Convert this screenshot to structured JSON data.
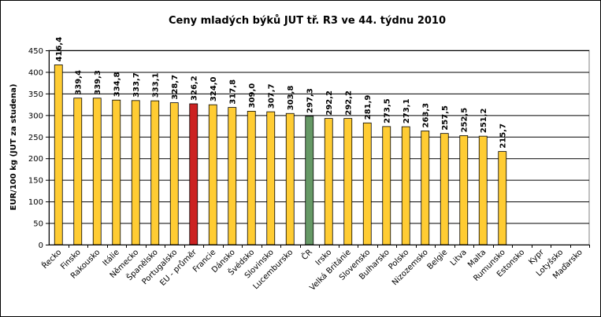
{
  "chart_data": {
    "type": "bar",
    "title": "Ceny mladých býků JUT  tř. R3  ve 44. týdnu 2010",
    "ylabel": "EUR/100 kg (JUT za studena)",
    "xlabel": "",
    "ylim": [
      0,
      450
    ],
    "yticks": [
      "0",
      "50",
      "100",
      "150",
      "200",
      "250",
      "300",
      "350",
      "400",
      "450"
    ],
    "grid": true,
    "categories": [
      "Řecko",
      "Finsko",
      "Rakousko",
      "Itálie",
      "Německo",
      "Španělsko",
      "Portugalsko",
      "EU - průměr",
      "Francie",
      "Dánsko",
      "Švédsko",
      "Slovinsko",
      "Lucembursko",
      "ČR",
      "Irsko",
      "Velká Británie",
      "Slovensko",
      "Bulharsko",
      "Polsko",
      "Nizozemsko",
      "Belgie",
      "Litva",
      "Malta",
      "Rumunsko",
      "Estonsko",
      "Kypr",
      "Lotyšsko",
      "Maďarsko"
    ],
    "values": [
      416.4,
      339.4,
      339.3,
      334.8,
      333.7,
      333.1,
      328.7,
      326.2,
      324.0,
      317.8,
      309.0,
      307.7,
      303.8,
      297.3,
      292.2,
      292.2,
      281.9,
      273.5,
      273.1,
      263.3,
      257.5,
      252.5,
      251.2,
      215.7,
      null,
      null,
      null,
      null
    ],
    "data_labels": [
      "416,4",
      "339,4",
      "339,3",
      "334,8",
      "333,7",
      "333,1",
      "328,7",
      "326,2",
      "324,0",
      "317,8",
      "309,0",
      "307,7",
      "303,8",
      "297,3",
      "292,2",
      "292,2",
      "281,9",
      "273,5",
      "273,1",
      "263,3",
      "257,5",
      "252,5",
      "251,2",
      "215,7",
      "",
      "",
      "",
      ""
    ],
    "colors": {
      "default": "#FFCC33",
      "eu_average": "#CC2222",
      "cr": "#669966",
      "plot_background": "#FFFFFF",
      "grid": "#000000"
    },
    "highlight": {
      "EU - průměr": "eu_average",
      "ČR": "cr"
    }
  }
}
